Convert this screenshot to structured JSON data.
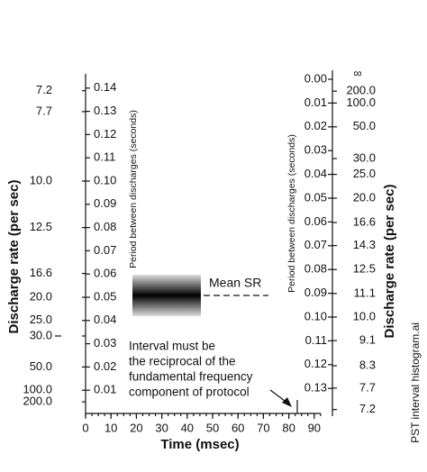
{
  "left_axis": {
    "label": "Discharge rate (per sec)",
    "period_title": "Period between discharges (seconds)",
    "periods": [
      {
        "value": 0.14,
        "label": "0.14"
      },
      {
        "value": 0.13,
        "label": "0.13"
      },
      {
        "value": 0.12,
        "label": "0.12"
      },
      {
        "value": 0.11,
        "label": "0.11"
      },
      {
        "value": 0.1,
        "label": "0.10"
      },
      {
        "value": 0.09,
        "label": "0.09"
      },
      {
        "value": 0.08,
        "label": "0.08"
      },
      {
        "value": 0.07,
        "label": "0.07"
      },
      {
        "value": 0.06,
        "label": "0.06"
      },
      {
        "value": 0.05,
        "label": "0.05"
      },
      {
        "value": 0.04,
        "label": "0.04"
      },
      {
        "value": 0.03,
        "label": "0.03"
      },
      {
        "value": 0.02,
        "label": "0.02"
      },
      {
        "value": 0.01,
        "label": "0.01"
      }
    ],
    "rates": [
      7.2,
      7.7,
      {
        "value": 10,
        "label": "10.0"
      },
      12.5,
      16.6,
      {
        "value": 20,
        "label": "20.0"
      },
      {
        "value": 25,
        "label": "25.0"
      },
      {
        "value": 30,
        "label": "30.0"
      },
      {
        "value": 50,
        "label": "50.0"
      },
      {
        "value": 100,
        "label": "100.0"
      },
      {
        "value": 200,
        "label": "200.0"
      }
    ]
  },
  "right_axis": {
    "label": "Discharge rate (per sec)",
    "period_title": "Period between discharges (seconds)",
    "periods": [
      {
        "value": 0,
        "label": "0.00"
      },
      {
        "value": 0.01,
        "label": "0.01"
      },
      {
        "value": 0.02,
        "label": "0.02"
      },
      {
        "value": 0.03,
        "label": "0.03"
      },
      {
        "value": 0.04,
        "label": "0.04"
      },
      {
        "value": 0.05,
        "label": "0.05"
      },
      {
        "value": 0.06,
        "label": "0.06"
      },
      {
        "value": 0.07,
        "label": "0.07"
      },
      {
        "value": 0.08,
        "label": "0.08"
      },
      {
        "value": 0.09,
        "label": "0.09"
      },
      {
        "value": 0.1,
        "label": "0.10"
      },
      {
        "value": 0.11,
        "label": "0.11"
      },
      {
        "value": 0.12,
        "label": "0.12"
      },
      {
        "value": 0.13,
        "label": "0.13"
      }
    ],
    "infinity": "∞",
    "rates": [
      {
        "value": 200,
        "label": "200.0"
      },
      {
        "value": 100,
        "label": "100.0"
      },
      {
        "value": 50,
        "label": "50.0"
      },
      {
        "value": 30,
        "label": "30.0"
      },
      {
        "value": 25,
        "label": "25.0"
      },
      {
        "value": 20,
        "label": "20.0"
      },
      16.6,
      14.3,
      12.5,
      11.1,
      {
        "value": 10,
        "label": "10.0"
      },
      9.1,
      8.3,
      7.7,
      7.2
    ]
  },
  "x_axis": {
    "label": "Time (msec)",
    "ticks": [
      0,
      10,
      20,
      30,
      40,
      50,
      60,
      70,
      80,
      90
    ]
  },
  "mean_sr": "Mean SR",
  "annotation": [
    "Interval must be",
    "the reciprocal of the",
    "fundamental frequency",
    "component of protocol"
  ],
  "credit": "PST interval histogram.ai"
}
